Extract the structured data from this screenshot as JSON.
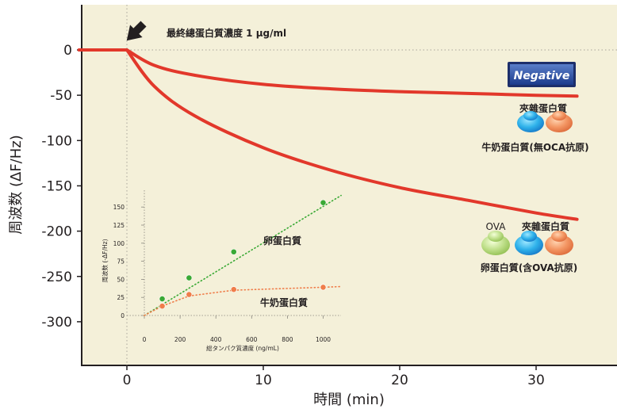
{
  "chart_data": [
    {
      "type": "line",
      "title": "",
      "annotation": "最終總蛋白質濃度 1 μg/ml",
      "xlabel": "時間 (min)",
      "ylabel": "周波数 (ΔF/Hz)",
      "xlim": [
        -3.5,
        35
      ],
      "ylim": [
        -345,
        50
      ],
      "x_ticks": [
        "0",
        "10",
        "20",
        "30"
      ],
      "y_ticks": [
        "0",
        "-50",
        "-100",
        "-150",
        "-200",
        "-250",
        "-300"
      ],
      "grid": false,
      "colors": {
        "plot_bg": "#f4f0d9",
        "line": "#e2382b",
        "marker_arrow": "#231f20"
      },
      "series": [
        {
          "x": [
            -3.5,
            0,
            2,
            5,
            10,
            15,
            20,
            25,
            30,
            33
          ],
          "y": [
            0,
            0,
            -17,
            -28,
            -38,
            -43,
            -46,
            -48,
            -50,
            -51
          ]
        },
        {
          "x": [
            -3.5,
            0,
            2,
            5,
            10,
            15,
            20,
            25,
            30,
            33
          ],
          "y": [
            0,
            0,
            -40,
            -73,
            -108,
            -133,
            -152,
            -166,
            -180,
            -187
          ]
        }
      ],
      "labels": {
        "negative_badge": "Negative",
        "neg_group_top": "夾雜蛋白質",
        "neg_group_bottom": "牛奶蛋白質(無OCA抗原)",
        "pos_ova": "OVA",
        "pos_group_top": "夾雜蛋白質",
        "pos_group_bottom": "卵蛋白質(含OVA抗原)"
      }
    },
    {
      "type": "scatter",
      "title": "",
      "xlabel": "総タンパク質濃度 (ng/mL)",
      "ylabel": "周波数 (-ΔF/Hz)",
      "xlim": [
        0,
        1100
      ],
      "ylim": [
        -5,
        170
      ],
      "x_ticks": [
        "0",
        "200",
        "400",
        "600",
        "800",
        "1000"
      ],
      "y_ticks": [
        "0",
        "25",
        "50",
        "75",
        "100",
        "125",
        "150"
      ],
      "series": [
        {
          "name": "卵蛋白質",
          "color": "#3aa935",
          "x": [
            100,
            250,
            500,
            1000
          ],
          "y": [
            23,
            52,
            88,
            156
          ],
          "trend_x": [
            0,
            1100
          ],
          "trend_y": [
            0,
            166
          ]
        },
        {
          "name": "牛奶蛋白質",
          "color": "#ef7d4a",
          "x": [
            100,
            250,
            500,
            1000
          ],
          "y": [
            13,
            29,
            36,
            39
          ],
          "trend_x": [
            0,
            100,
            250,
            500,
            1000,
            1100
          ],
          "trend_y": [
            0,
            13,
            27,
            35,
            39,
            40
          ]
        }
      ]
    }
  ]
}
